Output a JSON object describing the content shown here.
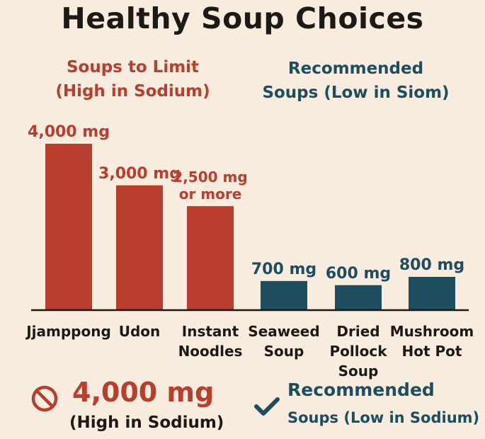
{
  "header": {
    "title": "Healthy Soup Choices"
  },
  "groups": {
    "limit": {
      "line1": "Soups to Limit",
      "line2": "(High in Sodium)"
    },
    "recommended": {
      "line1": "Recommended",
      "line2": "Soups (Low in Siom)"
    }
  },
  "colors": {
    "limit": "#b93e2d",
    "recommended": "#1e4d5e",
    "background": "#f8ecdf",
    "axis": "#1c1a17"
  },
  "chart_data": {
    "type": "bar",
    "unit": "mg",
    "ylim": [
      0,
      4500
    ],
    "grid": false,
    "categories": [
      [
        "Jjamppong"
      ],
      [
        "Udon"
      ],
      [
        "Instant",
        "Noodles"
      ],
      [
        "Seaweed",
        "Soup"
      ],
      [
        "Dried",
        "Pollock",
        "Soup"
      ],
      [
        "Mushroom",
        "Hot Pot"
      ]
    ],
    "values": [
      4000,
      3000,
      2500,
      700,
      600,
      800
    ],
    "groups": [
      "limit",
      "limit",
      "limit",
      "recommended",
      "recommended",
      "recommended"
    ],
    "data_labels": [
      [
        "4,000 mg"
      ],
      [
        "3,000 mg"
      ],
      [
        "2,500 mg",
        "or more"
      ],
      [
        "700 mg"
      ],
      [
        "600 mg"
      ],
      [
        "800 mg"
      ]
    ]
  },
  "footer": {
    "limit_icon": "no-entry-icon",
    "limit_value": "4,000 mg",
    "limit_note": "(High in Sodium)",
    "recommended_icon": "checkmark-icon",
    "recommended_line1": "Recommended",
    "recommended_line2": "Soups (Low in Sodium)"
  }
}
